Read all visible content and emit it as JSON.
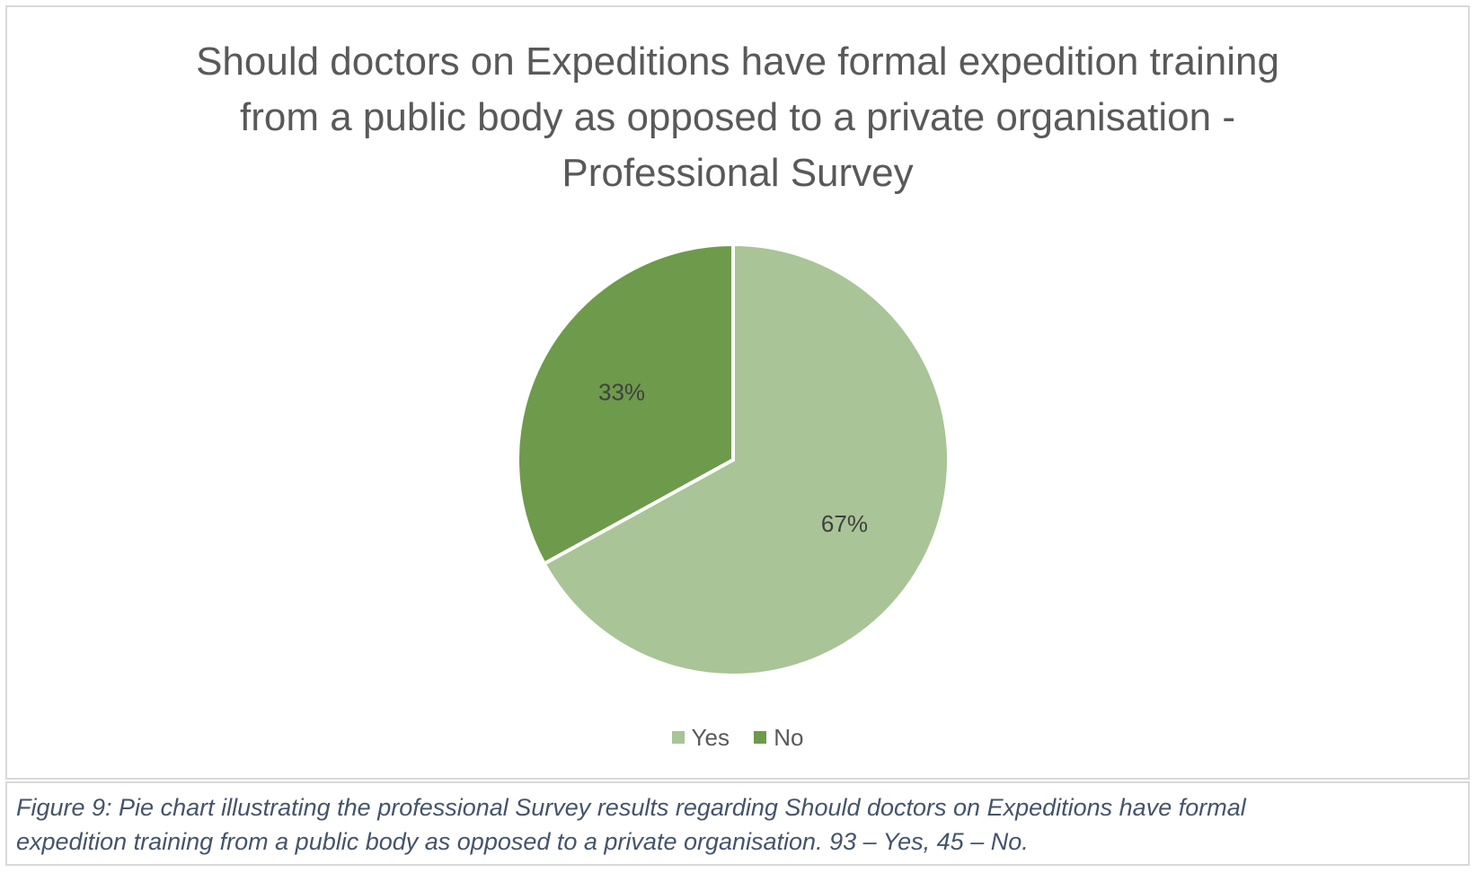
{
  "chart_data": {
    "type": "pie",
    "title": "Should doctors on Expeditions have formal expedition training\nfrom a public body as opposed to a private organisation -\nProfessional Survey",
    "categories": [
      "Yes",
      "No"
    ],
    "values": [
      67,
      33
    ],
    "data_labels": [
      "67%",
      "33%"
    ],
    "colors": [
      "#a9c496",
      "#6e9a4b"
    ],
    "label_color": "#404040",
    "legend": {
      "placement": "bottom",
      "entries": [
        "Yes",
        "No"
      ]
    },
    "start_angle": "top, clockwise"
  },
  "caption": "Figure 9: Pie chart illustrating the professional Survey results regarding Should doctors on Expeditions have formal\nexpedition training from a public body as opposed to a private organisation. 93 – Yes, 45 – No."
}
